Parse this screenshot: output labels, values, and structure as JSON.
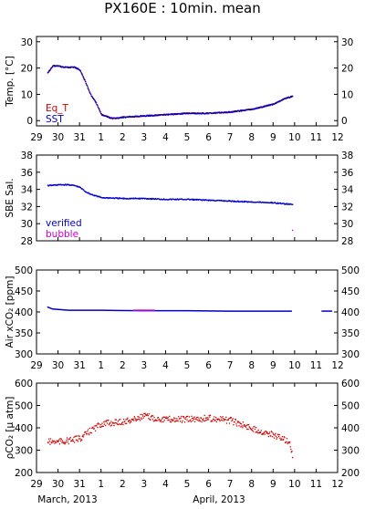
{
  "title": "PX160E : 10min. mean",
  "x_axis": {
    "tick_labels": [
      "29",
      "30",
      "31",
      "1",
      "2",
      "3",
      "4",
      "5",
      "6",
      "7",
      "8",
      "9",
      "10",
      "11",
      "12"
    ],
    "xlim": [
      "2013-03-29",
      "2013-04-12"
    ],
    "month_labels": [
      "March, 2013",
      "April, 2013"
    ]
  },
  "colors": {
    "red": "#d00000",
    "blue": "#0000c8",
    "magenta": "#cc00cc"
  },
  "chart_data": [
    {
      "type": "scatter",
      "ylabel": "Temp. [°C]",
      "ylim": [
        -2,
        32
      ],
      "yticks": [
        0,
        10,
        20,
        30
      ],
      "legend": "bottom-left",
      "series": [
        {
          "name": "Eq_T",
          "color": "#d00000",
          "points": [
            [
              "2013-03-29T12:00",
              18.5
            ],
            [
              "2013-03-29T18:00",
              21.0
            ],
            [
              "2013-03-30T00:00",
              21.0
            ],
            [
              "2013-03-30T06:00",
              20.5
            ],
            [
              "2013-03-30T12:00",
              20.5
            ],
            [
              "2013-03-30T18:00",
              20.5
            ],
            [
              "2013-03-31T00:00",
              19.5
            ],
            [
              "2013-03-31T06:00",
              15.0
            ],
            [
              "2013-03-31T12:00",
              10.0
            ],
            [
              "2013-03-31T18:00",
              7.0
            ],
            [
              "2013-04-01T00:00",
              2.5
            ],
            [
              "2013-04-01T12:00",
              1.0
            ],
            [
              "2013-04-02T00:00",
              1.5
            ],
            [
              "2013-04-03T00:00",
              2.0
            ],
            [
              "2013-04-04T00:00",
              2.5
            ],
            [
              "2013-04-05T00:00",
              3.0
            ],
            [
              "2013-04-06T00:00",
              3.0
            ],
            [
              "2013-04-07T00:00",
              3.5
            ],
            [
              "2013-04-08T00:00",
              4.5
            ],
            [
              "2013-04-09T00:00",
              6.5
            ],
            [
              "2013-04-09T12:00",
              8.5
            ],
            [
              "2013-04-09T21:00",
              9.5
            ]
          ]
        },
        {
          "name": "SST",
          "color": "#0000c8",
          "points": [
            [
              "2013-03-29T12:00",
              18.5
            ],
            [
              "2013-03-29T18:00",
              21.0
            ],
            [
              "2013-03-30T00:00",
              21.0
            ],
            [
              "2013-03-30T06:00",
              20.5
            ],
            [
              "2013-03-30T12:00",
              20.5
            ],
            [
              "2013-03-30T18:00",
              20.5
            ],
            [
              "2013-03-31T00:00",
              19.5
            ],
            [
              "2013-03-31T06:00",
              15.0
            ],
            [
              "2013-03-31T12:00",
              10.0
            ],
            [
              "2013-03-31T18:00",
              7.0
            ],
            [
              "2013-04-01T00:00",
              2.5
            ],
            [
              "2013-04-01T12:00",
              1.0
            ],
            [
              "2013-04-02T00:00",
              1.5
            ],
            [
              "2013-04-03T00:00",
              2.0
            ],
            [
              "2013-04-04T00:00",
              2.5
            ],
            [
              "2013-04-05T00:00",
              3.0
            ],
            [
              "2013-04-06T00:00",
              3.0
            ],
            [
              "2013-04-07T00:00",
              3.5
            ],
            [
              "2013-04-08T00:00",
              4.5
            ],
            [
              "2013-04-09T00:00",
              6.5
            ],
            [
              "2013-04-09T12:00",
              8.5
            ],
            [
              "2013-04-09T21:00",
              9.5
            ]
          ]
        }
      ]
    },
    {
      "type": "scatter",
      "ylabel": "SBE Sal.",
      "ylim": [
        28,
        38
      ],
      "yticks": [
        28,
        30,
        32,
        34,
        36,
        38
      ],
      "legend": "bottom-left",
      "series": [
        {
          "name": "verified",
          "color": "#0000c8",
          "points": [
            [
              "2013-03-29T12:00",
              34.5
            ],
            [
              "2013-03-30T00:00",
              34.6
            ],
            [
              "2013-03-30T12:00",
              34.6
            ],
            [
              "2013-03-30T18:00",
              34.5
            ],
            [
              "2013-03-31T00:00",
              34.3
            ],
            [
              "2013-03-31T06:00",
              33.8
            ],
            [
              "2013-03-31T12:00",
              33.5
            ],
            [
              "2013-03-31T18:00",
              33.3
            ],
            [
              "2013-04-01T00:00",
              33.1
            ],
            [
              "2013-04-02T00:00",
              33.0
            ],
            [
              "2013-04-03T00:00",
              33.0
            ],
            [
              "2013-04-04T00:00",
              32.9
            ],
            [
              "2013-04-05T00:00",
              32.9
            ],
            [
              "2013-04-06T00:00",
              32.8
            ],
            [
              "2013-04-07T00:00",
              32.7
            ],
            [
              "2013-04-08T00:00",
              32.6
            ],
            [
              "2013-04-09T00:00",
              32.5
            ],
            [
              "2013-04-09T21:00",
              32.3
            ]
          ]
        },
        {
          "name": "bubble",
          "color": "#cc00cc",
          "points": [
            [
              "2013-04-09T21:00",
              29.3
            ]
          ]
        }
      ]
    },
    {
      "type": "line",
      "ylabel": "Air xCO₂ [ppm]",
      "ylim": [
        300,
        500
      ],
      "yticks": [
        300,
        350,
        400,
        450,
        500
      ],
      "series": [
        {
          "name": "verified",
          "color": "#0000c8",
          "points": [
            [
              "2013-03-29T12:00",
              412
            ],
            [
              "2013-03-29T18:00",
              407
            ],
            [
              "2013-03-30T12:00",
              404
            ],
            [
              "2013-04-01T00:00",
              404
            ],
            [
              "2013-04-03T00:00",
              403
            ],
            [
              "2013-04-05T00:00",
              403
            ],
            [
              "2013-04-07T00:00",
              402
            ],
            [
              "2013-04-09T00:00",
              402
            ],
            [
              "2013-04-09T21:00",
              402
            ]
          ]
        },
        {
          "name": "bubble",
          "color": "#cc00cc",
          "points": [
            [
              "2013-04-02T12:00",
              404
            ],
            [
              "2013-04-03T12:00",
              404
            ]
          ]
        },
        {
          "name": "verified",
          "color": "#0000c8",
          "points": [
            [
              "2013-04-11T06:00",
              402
            ],
            [
              "2013-04-11T18:00",
              402
            ]
          ]
        }
      ]
    },
    {
      "type": "scatter",
      "ylabel": "ρCO₂ [µ atm]",
      "ylim": [
        200,
        600
      ],
      "yticks": [
        200,
        300,
        400,
        500,
        600
      ],
      "series": [
        {
          "name": "verified",
          "color": "#d00000",
          "points": [
            [
              "2013-03-29T12:00",
              340
            ],
            [
              "2013-03-30T00:00",
              340
            ],
            [
              "2013-03-30T12:00",
              345
            ],
            [
              "2013-03-31T00:00",
              355
            ],
            [
              "2013-03-31T12:00",
              390
            ],
            [
              "2013-04-01T00:00",
              420
            ],
            [
              "2013-04-01T12:00",
              425
            ],
            [
              "2013-04-02T00:00",
              430
            ],
            [
              "2013-04-02T12:00",
              440
            ],
            [
              "2013-04-03T00:00",
              455
            ],
            [
              "2013-04-03T12:00",
              445
            ],
            [
              "2013-04-04T00:00",
              440
            ],
            [
              "2013-04-05T00:00",
              440
            ],
            [
              "2013-04-06T00:00",
              445
            ],
            [
              "2013-04-07T00:00",
              435
            ],
            [
              "2013-04-08T00:00",
              400
            ],
            [
              "2013-04-09T00:00",
              370
            ],
            [
              "2013-04-09T18:00",
              340
            ],
            [
              "2013-04-09T21:00",
              270
            ]
          ]
        }
      ]
    }
  ]
}
